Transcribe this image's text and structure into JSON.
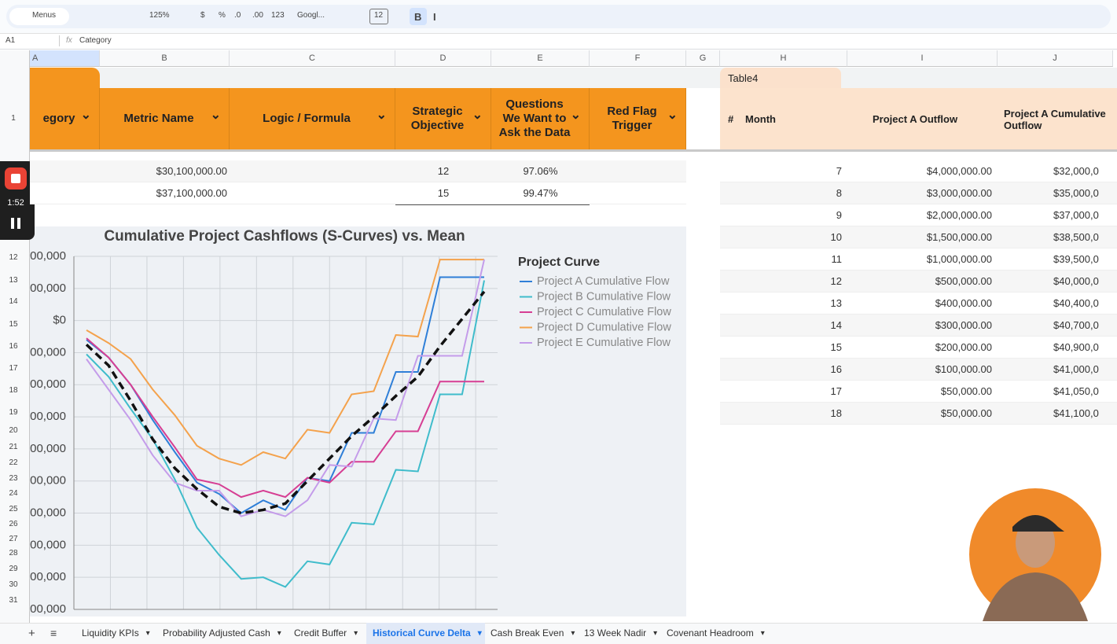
{
  "toolbar": {
    "items": [
      "Menus",
      "125%",
      "$",
      "%",
      ".0",
      ".00",
      "123",
      "Googl...",
      "12",
      "B",
      "I"
    ]
  },
  "formula_bar": {
    "cell": "A1",
    "fx": "fx",
    "content": "Category"
  },
  "columns": [
    "A",
    "B",
    "C",
    "D",
    "E",
    "F",
    "G",
    "H",
    "I",
    "J"
  ],
  "row_numbers": [
    "1",
    "12",
    "13",
    "14",
    "15",
    "16",
    "17",
    "18",
    "19",
    "20",
    "21",
    "22",
    "23",
    "24",
    "25",
    "26",
    "27",
    "28",
    "29",
    "30",
    "31"
  ],
  "left_table": {
    "headers": [
      "egory",
      "Metric Name",
      "Logic / Formula",
      "Strategic Objective",
      "Questions We Want to Ask the Data",
      "Red Flag Trigger"
    ],
    "rows": [
      [
        "$30,100,000.00",
        "12",
        "97.06%"
      ],
      [
        "$37,100,000.00",
        "15",
        "99.47%"
      ]
    ]
  },
  "right_table": {
    "name": "Table4",
    "headers": [
      "#",
      "Month",
      "Project A Outflow",
      "Project A Cumulative Outflow"
    ],
    "rows": [
      [
        "7",
        "$4,000,000.00",
        "$32,000,0"
      ],
      [
        "8",
        "$3,000,000.00",
        "$35,000,0"
      ],
      [
        "9",
        "$2,000,000.00",
        "$37,000,0"
      ],
      [
        "10",
        "$1,500,000.00",
        "$38,500,0"
      ],
      [
        "11",
        "$1,000,000.00",
        "$39,500,0"
      ],
      [
        "12",
        "$500,000.00",
        "$40,000,0"
      ],
      [
        "13",
        "$400,000.00",
        "$40,400,0"
      ],
      [
        "14",
        "$300,000.00",
        "$40,700,0"
      ],
      [
        "15",
        "$200,000.00",
        "$40,900,0"
      ],
      [
        "16",
        "$100,000.00",
        "$41,000,0"
      ],
      [
        "17",
        "$50,000.00",
        "$41,050,0"
      ],
      [
        "18",
        "$50,000.00",
        "$41,100,0"
      ]
    ]
  },
  "recorder": {
    "time": "1:52"
  },
  "sheet_tabs": {
    "tabs": [
      "Liquidity KPIs",
      "Probability Adjusted Cash",
      "Credit Buffer",
      "Historical Curve Delta",
      "Cash Break Even",
      "13 Week Nadir",
      "Covenant Headroom"
    ],
    "active": 3
  },
  "chart": {
    "type": "line",
    "title": "Cumulative Project Cashflows (S-Curves) vs. Mean",
    "legend_title": "Project Curve",
    "ylim": [
      -90000000,
      20000000
    ],
    "yticks": [
      {
        "value": 20000000,
        "label": "00,000"
      },
      {
        "value": 10000000,
        "label": "00,000"
      },
      {
        "value": 0,
        "label": "$0"
      },
      {
        "value": -10000000,
        "label": "00,000"
      },
      {
        "value": -20000000,
        "label": "00,000"
      },
      {
        "value": -30000000,
        "label": "00,000"
      },
      {
        "value": -40000000,
        "label": "00,000"
      },
      {
        "value": -50000000,
        "label": "00,000"
      },
      {
        "value": -60000000,
        "label": "00,000"
      },
      {
        "value": -70000000,
        "label": "00,000"
      },
      {
        "value": -80000000,
        "label": "00,000"
      },
      {
        "value": -90000000,
        "label": "00,000"
      }
    ],
    "grid": true,
    "series": [
      {
        "name": "Project A Cumulative Flow",
        "color": "#2f7fd8",
        "values": [
          -6000000,
          -11500000,
          -20000000,
          -31000000,
          -41000000,
          -50500000,
          -54000000,
          -60000000,
          -56000000,
          -59000000,
          -49000000,
          -50000000,
          -35000000,
          -35000000,
          -16000000,
          -16000000,
          13500000,
          13500000,
          13500000
        ]
      },
      {
        "name": "Project B Cumulative Flow",
        "color": "#3fbccb",
        "values": [
          -10500000,
          -17500000,
          -27500000,
          -37000000,
          -49500000,
          -64500000,
          -73000000,
          -80500000,
          -80000000,
          -83000000,
          -75000000,
          -76000000,
          -63000000,
          -63500000,
          -46500000,
          -47000000,
          -23000000,
          -23000000,
          12500000
        ]
      },
      {
        "name": "Project C Cumulative Flow",
        "color": "#d63e93",
        "values": [
          -5500000,
          -11500000,
          -20000000,
          -30000000,
          -39500000,
          -49500000,
          -51000000,
          -55000000,
          -53000000,
          -55000000,
          -49000000,
          -50500000,
          -44000000,
          -44000000,
          -34500000,
          -34500000,
          -19000000,
          -19000000,
          -19000000
        ]
      },
      {
        "name": "Project D Cumulative Flow",
        "color": "#f4a24c",
        "values": [
          -3000000,
          -7000000,
          -12000000,
          -21500000,
          -29500000,
          -39000000,
          -43000000,
          -45000000,
          -41000000,
          -43000000,
          -34000000,
          -35000000,
          -23000000,
          -22000000,
          -4500000,
          -5000000,
          19000000,
          19000000,
          19000000
        ]
      },
      {
        "name": "Project E Cumulative Flow",
        "color": "#c49cea",
        "values": [
          -12000000,
          -21500000,
          -31000000,
          -42000000,
          -50500000,
          -53000000,
          -53000000,
          -61000000,
          -59000000,
          -61000000,
          -56000000,
          -45000000,
          -45500000,
          -30500000,
          -31000000,
          -11000000,
          -11000000,
          -11000000,
          19000000
        ]
      },
      {
        "color": "#111111",
        "dashed": true,
        "values": [
          -7500000,
          -14000000,
          -25000000,
          -37000000,
          -46000000,
          -52500000,
          -58000000,
          -60000000,
          -59000000,
          -57000000,
          -50000000,
          -43000000,
          -36000000,
          -30000000,
          -23500000,
          -17500000,
          -8000000,
          500000,
          9000000
        ]
      }
    ]
  }
}
